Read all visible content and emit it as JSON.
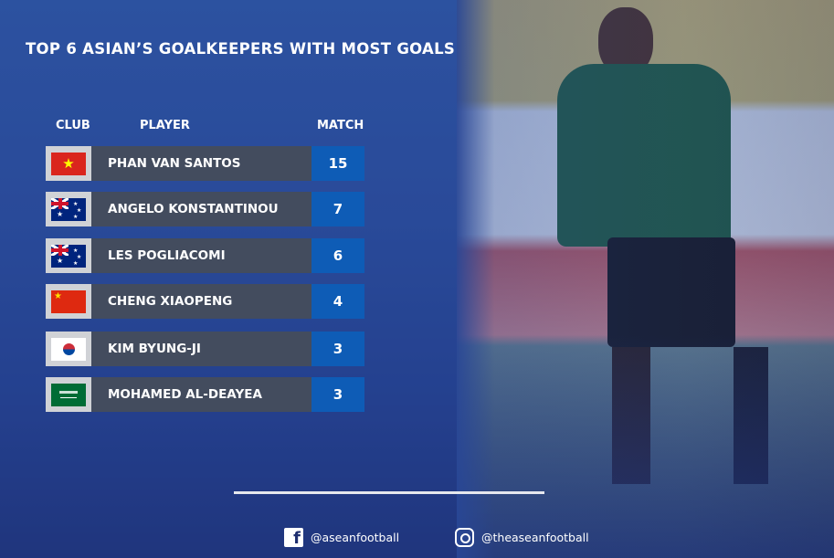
{
  "title": "TOP 6 ASIAN’S GOALKEEPERS WITH MOST GOALS",
  "headers": {
    "club": "CLUB",
    "player": "PLAYER",
    "match": "MATCH"
  },
  "rows": [
    {
      "flag": "vietnam",
      "player": "PHAN VAN SANTOS",
      "match": "15"
    },
    {
      "flag": "australia",
      "player": "ANGELO KONSTANTINOU",
      "match": "7"
    },
    {
      "flag": "australia",
      "player": "LES POGLIACOMI",
      "match": "6"
    },
    {
      "flag": "china",
      "player": "CHENG XIAOPENG",
      "match": "4"
    },
    {
      "flag": "south-korea",
      "player": "KIM BYUNG-JI",
      "match": "3"
    },
    {
      "flag": "saudi-arabia",
      "player": "MOHAMED AL-DEAYEA",
      "match": "3"
    }
  ],
  "footer": {
    "facebook": "@aseanfootball",
    "instagram": "@theaseanfootball"
  },
  "colors": {
    "match_box": "#0e5cb6",
    "name_box": "#434c5e",
    "background": "#2a4a95"
  }
}
